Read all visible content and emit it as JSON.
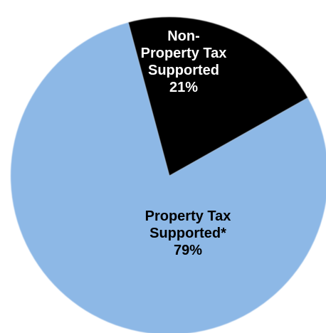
{
  "chart_data": {
    "type": "pie",
    "slices": [
      {
        "label_lines": [
          "Non-",
          "Property Tax",
          "Supported",
          "21%"
        ],
        "value": 21,
        "color": "#000000",
        "text_color": "#ffffff"
      },
      {
        "label_lines": [
          "Property Tax",
          "Supported*",
          "79%"
        ],
        "value": 79,
        "color": "#8db8e6",
        "text_color": "#000000"
      }
    ]
  }
}
